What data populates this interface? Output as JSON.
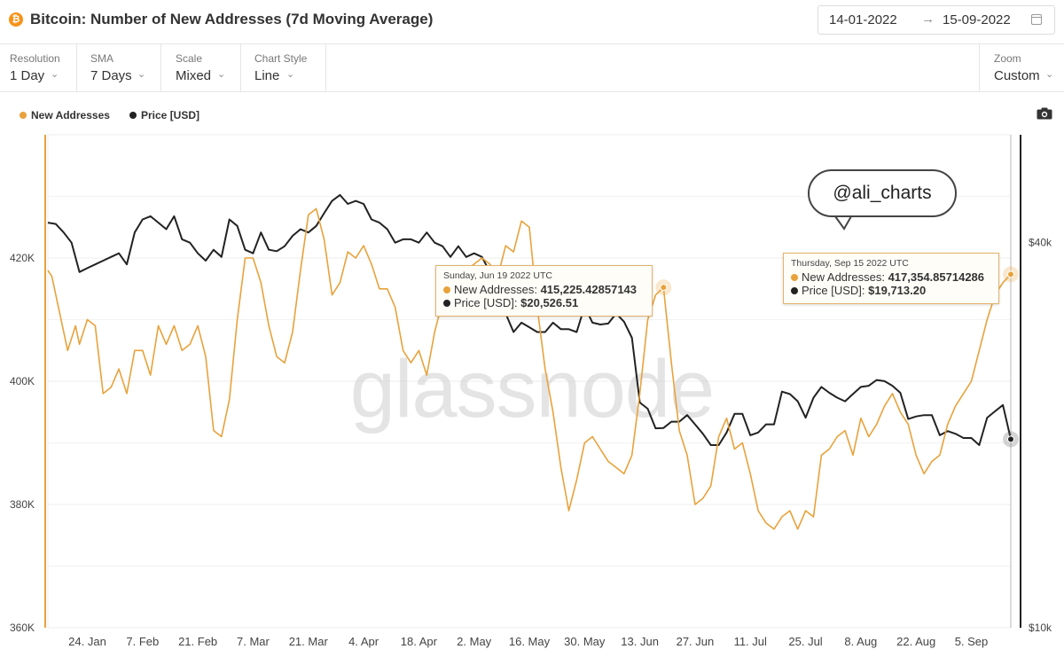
{
  "header": {
    "title": "Bitcoin: Number of New Addresses (7d Moving Average)",
    "coin_glyph": "₿",
    "date_start": "14-01-2022",
    "date_arrow": "→",
    "date_end": "15-09-2022"
  },
  "controls": [
    {
      "label": "Resolution",
      "value": "1 Day"
    },
    {
      "label": "SMA",
      "value": "7 Days"
    },
    {
      "label": "Scale",
      "value": "Mixed"
    },
    {
      "label": "Chart Style",
      "value": "Line"
    }
  ],
  "zoom": {
    "label": "Zoom",
    "value": "Custom"
  },
  "chevron": "⌄",
  "legend": [
    {
      "name": "New Addresses",
      "color": "#e8a23c"
    },
    {
      "name": "Price [USD]",
      "color": "#222222"
    }
  ],
  "watermark": "glassnode",
  "annotation": "@ali_charts",
  "tooltips": [
    {
      "date": "Sunday, Jun 19 2022 UTC",
      "addresses_label": "New Addresses:",
      "addresses_value": "415,225.42857143",
      "price_label": "Price [USD]:",
      "price_value": "$20,526.51"
    },
    {
      "date": "Thursday, Sep 15 2022 UTC",
      "addresses_label": "New Addresses:",
      "addresses_value": "417,354.85714286",
      "price_label": "Price [USD]:",
      "price_value": "$19,713.20"
    }
  ],
  "chart_data": {
    "type": "line",
    "x_start": "2022-01-14",
    "x_end": "2022-09-15",
    "x_ticks": [
      "24. Jan",
      "7. Feb",
      "21. Feb",
      "7. Mar",
      "21. Mar",
      "4. Apr",
      "18. Apr",
      "2. May",
      "16. May",
      "30. May",
      "13. Jun",
      "27. Jun",
      "11. Jul",
      "25. Jul",
      "8. Aug",
      "22. Aug",
      "5. Sep"
    ],
    "y_left": {
      "ticks": [
        "360K",
        "380K",
        "400K",
        "420K"
      ],
      "min": 360000,
      "max": 440000
    },
    "y_right": {
      "ticks": [
        "$10k",
        "$40k"
      ],
      "scale": "log",
      "min": 10000,
      "max": 59000
    },
    "grid": true,
    "legend_position": "top-left",
    "series": [
      {
        "name": "New Addresses",
        "axis": "left",
        "color": "#e8a23c",
        "points": [
          [
            "2022-01-14",
            418000
          ],
          [
            "2022-01-15",
            417000
          ],
          [
            "2022-01-17",
            411000
          ],
          [
            "2022-01-19",
            405000
          ],
          [
            "2022-01-21",
            409000
          ],
          [
            "2022-01-22",
            406000
          ],
          [
            "2022-01-24",
            410000
          ],
          [
            "2022-01-26",
            409000
          ],
          [
            "2022-01-28",
            398000
          ],
          [
            "2022-01-30",
            399000
          ],
          [
            "2022-02-01",
            402000
          ],
          [
            "2022-02-03",
            398000
          ],
          [
            "2022-02-05",
            405000
          ],
          [
            "2022-02-07",
            405000
          ],
          [
            "2022-02-09",
            401000
          ],
          [
            "2022-02-11",
            409000
          ],
          [
            "2022-02-13",
            406000
          ],
          [
            "2022-02-15",
            409000
          ],
          [
            "2022-02-17",
            405000
          ],
          [
            "2022-02-19",
            406000
          ],
          [
            "2022-02-21",
            409000
          ],
          [
            "2022-02-23",
            404000
          ],
          [
            "2022-02-25",
            392000
          ],
          [
            "2022-02-27",
            391000
          ],
          [
            "2022-03-01",
            397000
          ],
          [
            "2022-03-03",
            410000
          ],
          [
            "2022-03-05",
            420000
          ],
          [
            "2022-03-07",
            420000
          ],
          [
            "2022-03-09",
            416000
          ],
          [
            "2022-03-11",
            409000
          ],
          [
            "2022-03-13",
            404000
          ],
          [
            "2022-03-15",
            403000
          ],
          [
            "2022-03-17",
            408000
          ],
          [
            "2022-03-19",
            418000
          ],
          [
            "2022-03-21",
            427000
          ],
          [
            "2022-03-23",
            428000
          ],
          [
            "2022-03-25",
            423000
          ],
          [
            "2022-03-27",
            414000
          ],
          [
            "2022-03-29",
            416000
          ],
          [
            "2022-03-31",
            421000
          ],
          [
            "2022-04-02",
            420000
          ],
          [
            "2022-04-04",
            422000
          ],
          [
            "2022-04-06",
            419000
          ],
          [
            "2022-04-08",
            415000
          ],
          [
            "2022-04-10",
            415000
          ],
          [
            "2022-04-12",
            412000
          ],
          [
            "2022-04-14",
            405000
          ],
          [
            "2022-04-16",
            403000
          ],
          [
            "2022-04-18",
            405000
          ],
          [
            "2022-04-20",
            401000
          ],
          [
            "2022-04-22",
            408000
          ],
          [
            "2022-04-24",
            413000
          ],
          [
            "2022-04-26",
            411000
          ],
          [
            "2022-04-28",
            415000
          ],
          [
            "2022-04-30",
            418000
          ],
          [
            "2022-05-02",
            419000
          ],
          [
            "2022-05-04",
            420000
          ],
          [
            "2022-05-06",
            419000
          ],
          [
            "2022-05-08",
            417000
          ],
          [
            "2022-05-10",
            422000
          ],
          [
            "2022-05-12",
            421000
          ],
          [
            "2022-05-14",
            426000
          ],
          [
            "2022-05-16",
            425000
          ],
          [
            "2022-05-18",
            412000
          ],
          [
            "2022-05-20",
            402000
          ],
          [
            "2022-05-22",
            395000
          ],
          [
            "2022-05-24",
            386000
          ],
          [
            "2022-05-26",
            379000
          ],
          [
            "2022-05-28",
            384000
          ],
          [
            "2022-05-30",
            390000
          ],
          [
            "2022-06-01",
            391000
          ],
          [
            "2022-06-03",
            389000
          ],
          [
            "2022-06-05",
            387000
          ],
          [
            "2022-06-07",
            386000
          ],
          [
            "2022-06-09",
            385000
          ],
          [
            "2022-06-11",
            388000
          ],
          [
            "2022-06-13",
            398000
          ],
          [
            "2022-06-15",
            410000
          ],
          [
            "2022-06-17",
            414000
          ],
          [
            "2022-06-19",
            415225
          ],
          [
            "2022-06-21",
            403000
          ],
          [
            "2022-06-23",
            392000
          ],
          [
            "2022-06-25",
            388000
          ],
          [
            "2022-06-27",
            380000
          ],
          [
            "2022-06-29",
            381000
          ],
          [
            "2022-07-01",
            383000
          ],
          [
            "2022-07-03",
            391000
          ],
          [
            "2022-07-05",
            394000
          ],
          [
            "2022-07-07",
            389000
          ],
          [
            "2022-07-09",
            390000
          ],
          [
            "2022-07-11",
            385000
          ],
          [
            "2022-07-13",
            379000
          ],
          [
            "2022-07-15",
            377000
          ],
          [
            "2022-07-17",
            376000
          ],
          [
            "2022-07-19",
            378000
          ],
          [
            "2022-07-21",
            379000
          ],
          [
            "2022-07-23",
            376000
          ],
          [
            "2022-07-25",
            379000
          ],
          [
            "2022-07-27",
            378000
          ],
          [
            "2022-07-29",
            388000
          ],
          [
            "2022-07-31",
            389000
          ],
          [
            "2022-08-02",
            391000
          ],
          [
            "2022-08-04",
            392000
          ],
          [
            "2022-08-06",
            388000
          ],
          [
            "2022-08-08",
            394000
          ],
          [
            "2022-08-10",
            391000
          ],
          [
            "2022-08-12",
            393000
          ],
          [
            "2022-08-14",
            396000
          ],
          [
            "2022-08-16",
            398000
          ],
          [
            "2022-08-18",
            395000
          ],
          [
            "2022-08-20",
            393000
          ],
          [
            "2022-08-22",
            388000
          ],
          [
            "2022-08-24",
            385000
          ],
          [
            "2022-08-26",
            387000
          ],
          [
            "2022-08-28",
            388000
          ],
          [
            "2022-08-30",
            393000
          ],
          [
            "2022-09-01",
            396000
          ],
          [
            "2022-09-03",
            398000
          ],
          [
            "2022-09-05",
            400000
          ],
          [
            "2022-09-07",
            405000
          ],
          [
            "2022-09-09",
            410000
          ],
          [
            "2022-09-11",
            414000
          ],
          [
            "2022-09-13",
            416000
          ],
          [
            "2022-09-15",
            417355
          ]
        ]
      },
      {
        "name": "Price [USD]",
        "axis": "right",
        "color": "#222222",
        "points": [
          [
            "2022-01-14",
            43000
          ],
          [
            "2022-01-16",
            42800
          ],
          [
            "2022-01-18",
            41500
          ],
          [
            "2022-01-20",
            40000
          ],
          [
            "2022-01-22",
            36000
          ],
          [
            "2022-01-24",
            36500
          ],
          [
            "2022-01-26",
            37000
          ],
          [
            "2022-01-28",
            37500
          ],
          [
            "2022-01-30",
            38000
          ],
          [
            "2022-02-01",
            38500
          ],
          [
            "2022-02-03",
            37000
          ],
          [
            "2022-02-05",
            41500
          ],
          [
            "2022-02-07",
            43500
          ],
          [
            "2022-02-09",
            44000
          ],
          [
            "2022-02-11",
            43000
          ],
          [
            "2022-02-13",
            42000
          ],
          [
            "2022-02-15",
            44000
          ],
          [
            "2022-02-17",
            40500
          ],
          [
            "2022-02-19",
            40000
          ],
          [
            "2022-02-21",
            38500
          ],
          [
            "2022-02-23",
            37500
          ],
          [
            "2022-02-25",
            39000
          ],
          [
            "2022-02-27",
            38000
          ],
          [
            "2022-03-01",
            43500
          ],
          [
            "2022-03-03",
            42500
          ],
          [
            "2022-03-05",
            39000
          ],
          [
            "2022-03-07",
            38500
          ],
          [
            "2022-03-09",
            41500
          ],
          [
            "2022-03-11",
            39000
          ],
          [
            "2022-03-13",
            38800
          ],
          [
            "2022-03-15",
            39500
          ],
          [
            "2022-03-17",
            41000
          ],
          [
            "2022-03-19",
            42000
          ],
          [
            "2022-03-21",
            41500
          ],
          [
            "2022-03-23",
            42500
          ],
          [
            "2022-03-25",
            44500
          ],
          [
            "2022-03-27",
            46500
          ],
          [
            "2022-03-29",
            47500
          ],
          [
            "2022-03-31",
            46000
          ],
          [
            "2022-04-02",
            46500
          ],
          [
            "2022-04-04",
            46000
          ],
          [
            "2022-04-06",
            43500
          ],
          [
            "2022-04-08",
            43000
          ],
          [
            "2022-04-10",
            42000
          ],
          [
            "2022-04-12",
            40000
          ],
          [
            "2022-04-14",
            40500
          ],
          [
            "2022-04-16",
            40500
          ],
          [
            "2022-04-18",
            40000
          ],
          [
            "2022-04-20",
            41500
          ],
          [
            "2022-04-22",
            40000
          ],
          [
            "2022-04-24",
            39500
          ],
          [
            "2022-04-26",
            38000
          ],
          [
            "2022-04-28",
            39500
          ],
          [
            "2022-04-30",
            38000
          ],
          [
            "2022-05-02",
            38500
          ],
          [
            "2022-05-04",
            38000
          ],
          [
            "2022-05-06",
            36000
          ],
          [
            "2022-05-08",
            34000
          ],
          [
            "2022-05-10",
            31000
          ],
          [
            "2022-05-12",
            29000
          ],
          [
            "2022-05-14",
            30000
          ],
          [
            "2022-05-16",
            29500
          ],
          [
            "2022-05-18",
            29000
          ],
          [
            "2022-05-20",
            29000
          ],
          [
            "2022-05-22",
            30000
          ],
          [
            "2022-05-24",
            29300
          ],
          [
            "2022-05-26",
            29300
          ],
          [
            "2022-05-28",
            29000
          ],
          [
            "2022-05-30",
            31800
          ],
          [
            "2022-06-01",
            30000
          ],
          [
            "2022-06-03",
            29800
          ],
          [
            "2022-06-05",
            29900
          ],
          [
            "2022-06-07",
            31000
          ],
          [
            "2022-06-09",
            30100
          ],
          [
            "2022-06-11",
            28400
          ],
          [
            "2022-06-13",
            22500
          ],
          [
            "2022-06-15",
            22000
          ],
          [
            "2022-06-17",
            20500
          ],
          [
            "2022-06-19",
            20527
          ],
          [
            "2022-06-21",
            21000
          ],
          [
            "2022-06-23",
            21000
          ],
          [
            "2022-06-25",
            21500
          ],
          [
            "2022-06-27",
            20800
          ],
          [
            "2022-06-29",
            20100
          ],
          [
            "2022-07-01",
            19300
          ],
          [
            "2022-07-03",
            19300
          ],
          [
            "2022-07-05",
            20200
          ],
          [
            "2022-07-07",
            21600
          ],
          [
            "2022-07-09",
            21600
          ],
          [
            "2022-07-11",
            20000
          ],
          [
            "2022-07-13",
            20200
          ],
          [
            "2022-07-15",
            20800
          ],
          [
            "2022-07-17",
            20800
          ],
          [
            "2022-07-19",
            23400
          ],
          [
            "2022-07-21",
            23200
          ],
          [
            "2022-07-23",
            22600
          ],
          [
            "2022-07-25",
            21300
          ],
          [
            "2022-07-27",
            22900
          ],
          [
            "2022-07-29",
            23800
          ],
          [
            "2022-07-31",
            23300
          ],
          [
            "2022-08-02",
            22900
          ],
          [
            "2022-08-04",
            22600
          ],
          [
            "2022-08-06",
            23200
          ],
          [
            "2022-08-08",
            23800
          ],
          [
            "2022-08-10",
            23900
          ],
          [
            "2022-08-12",
            24400
          ],
          [
            "2022-08-14",
            24300
          ],
          [
            "2022-08-16",
            23900
          ],
          [
            "2022-08-18",
            23300
          ],
          [
            "2022-08-20",
            21200
          ],
          [
            "2022-08-22",
            21400
          ],
          [
            "2022-08-24",
            21500
          ],
          [
            "2022-08-26",
            21500
          ],
          [
            "2022-08-28",
            20000
          ],
          [
            "2022-08-30",
            20300
          ],
          [
            "2022-09-01",
            20100
          ],
          [
            "2022-09-03",
            19800
          ],
          [
            "2022-09-05",
            19800
          ],
          [
            "2022-09-07",
            19300
          ],
          [
            "2022-09-09",
            21300
          ],
          [
            "2022-09-11",
            21800
          ],
          [
            "2022-09-13",
            22300
          ],
          [
            "2022-09-15",
            19713
          ]
        ]
      }
    ]
  }
}
